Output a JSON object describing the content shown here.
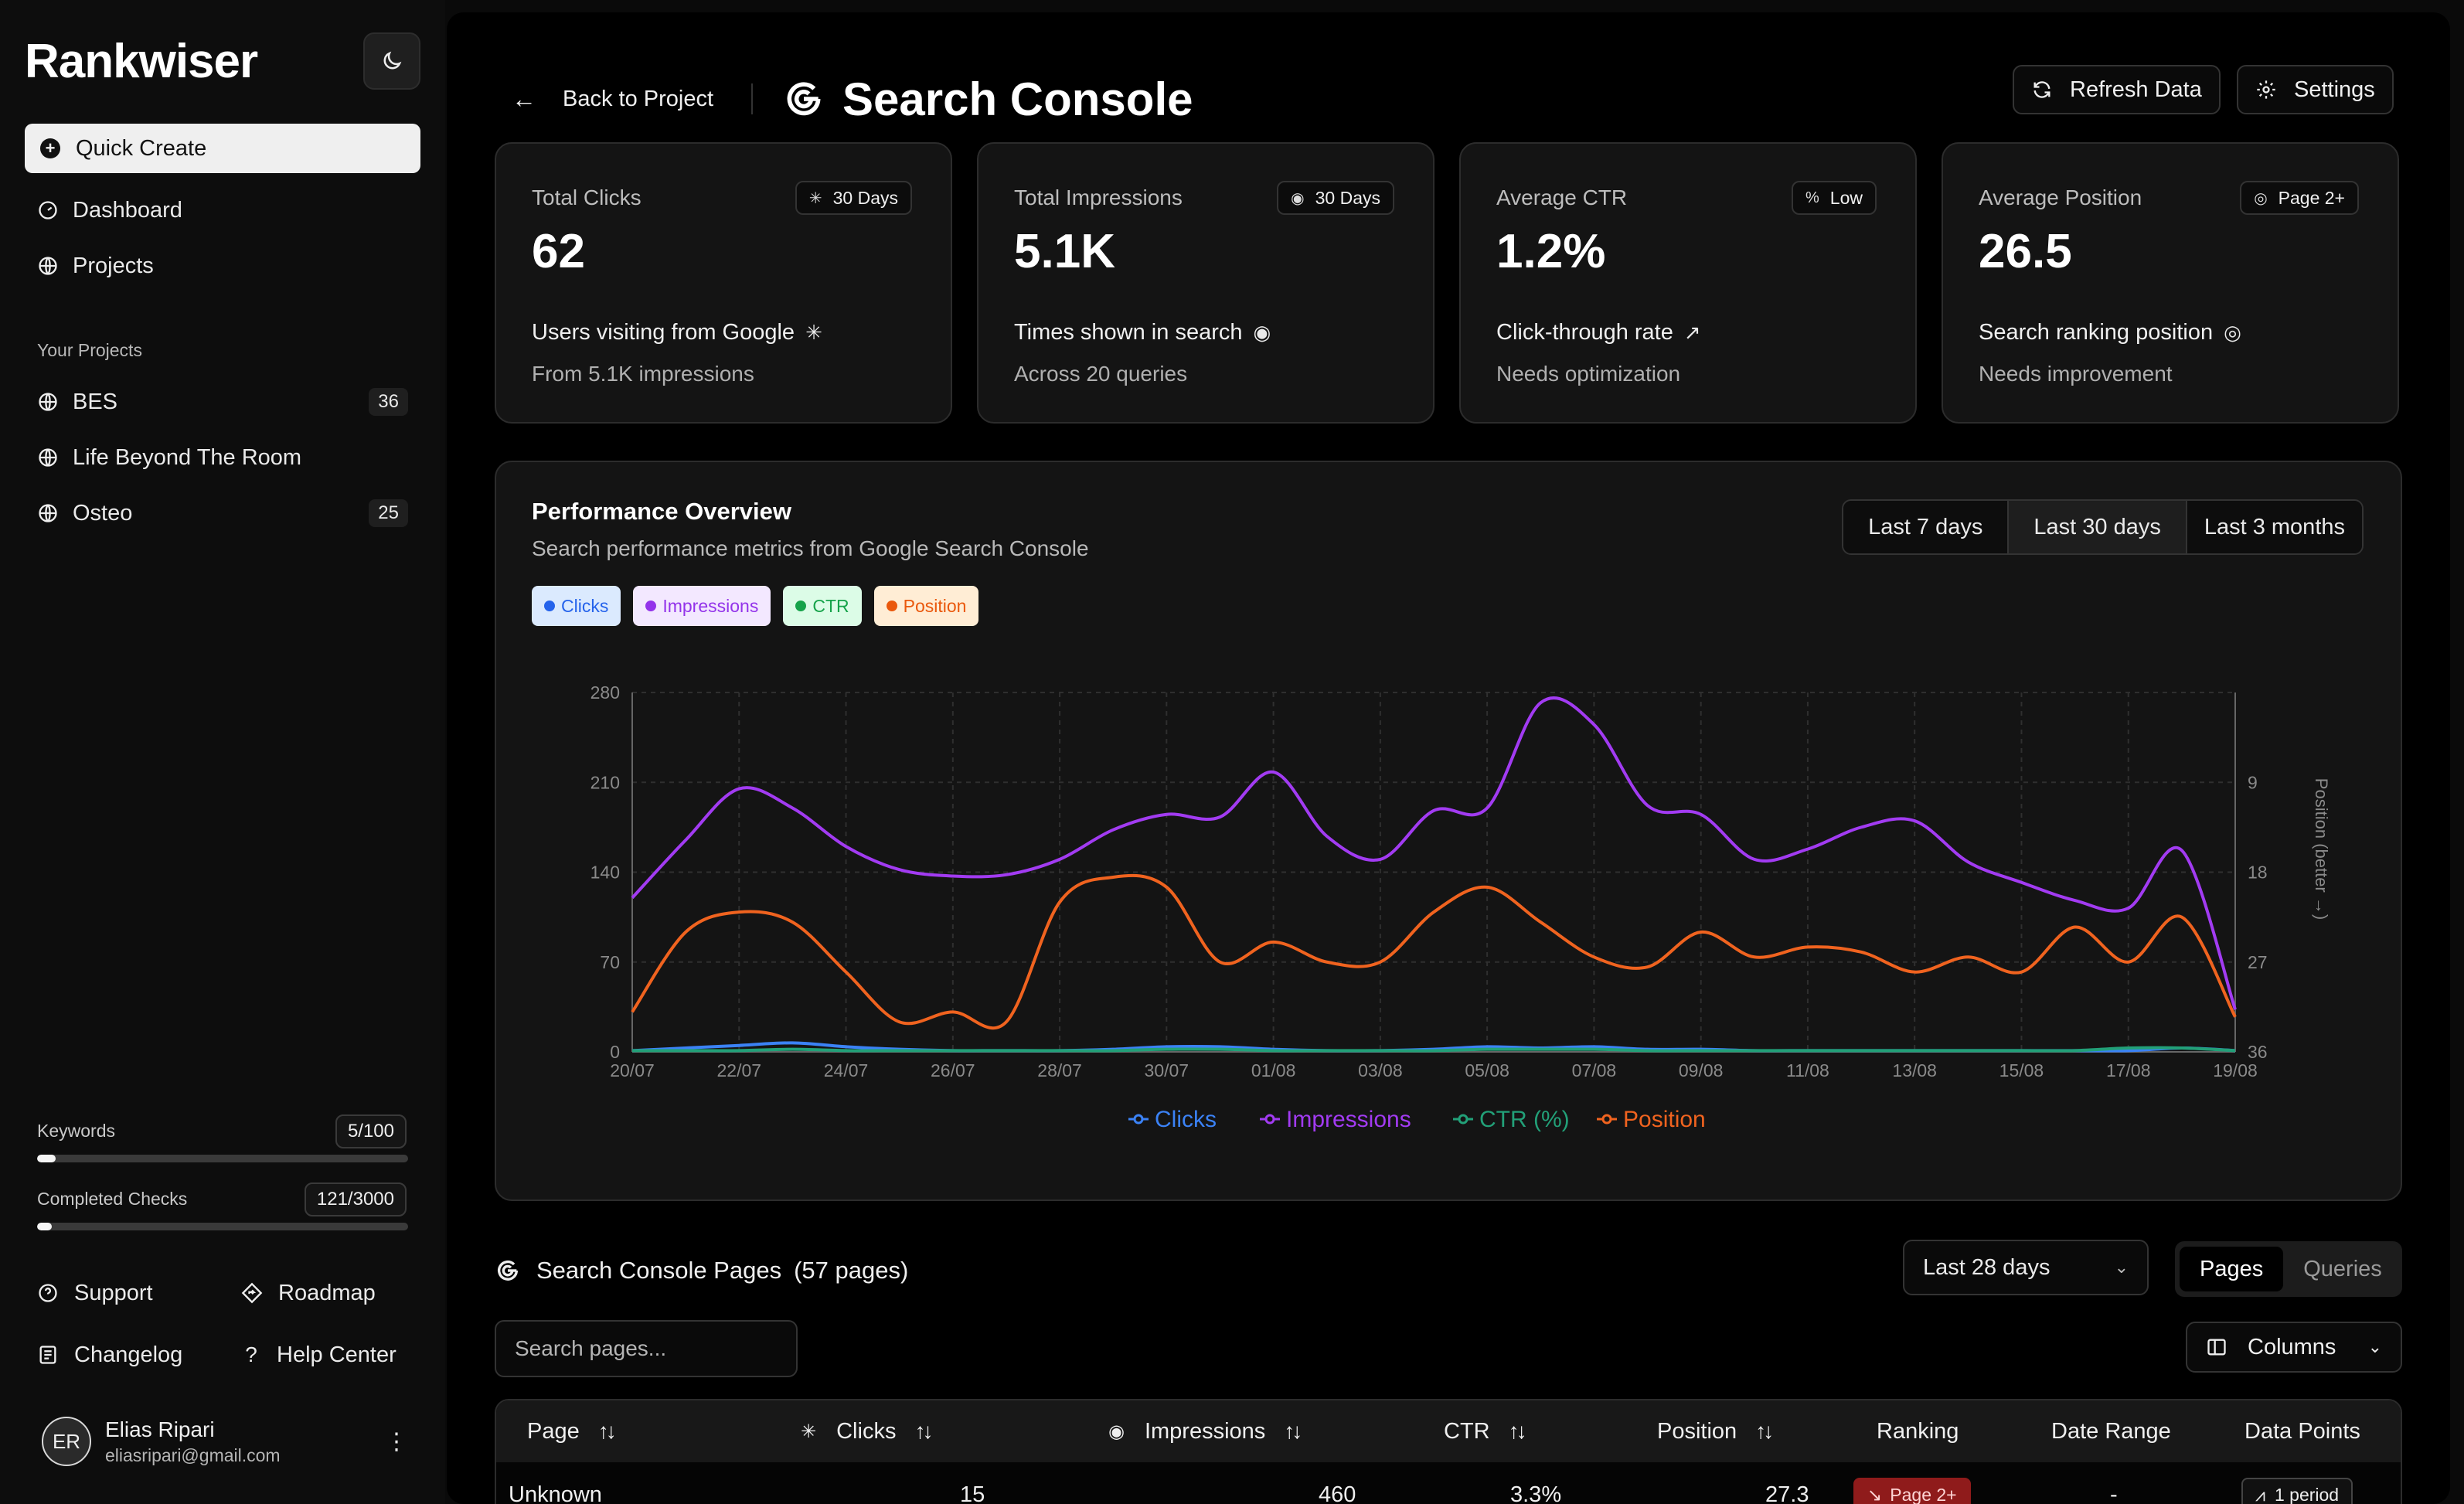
{
  "sidebar": {
    "logo": "Rankwiser",
    "quick_create": "Quick Create",
    "nav": [
      {
        "label": "Dashboard"
      },
      {
        "label": "Projects"
      }
    ],
    "section_label": "Your Projects",
    "projects": [
      {
        "name": "BES",
        "count": "36"
      },
      {
        "name": "Life Beyond The Room",
        "count": ""
      },
      {
        "name": "Osteo",
        "count": "25"
      }
    ],
    "usage": [
      {
        "label": "Keywords",
        "count": "5/100",
        "fraction": 0.05
      },
      {
        "label": "Completed Checks",
        "count": "121/3000",
        "fraction": 0.04
      }
    ],
    "footer_links": {
      "support": "Support",
      "roadmap": "Roadmap",
      "changelog": "Changelog",
      "help": "Help Center"
    },
    "user": {
      "initials": "ER",
      "name": "Elias Ripari",
      "email": "eliasripari@gmail.com"
    }
  },
  "header": {
    "back": "Back to Project",
    "title": "Search Console",
    "refresh": "Refresh Data",
    "settings": "Settings"
  },
  "stats": [
    {
      "label": "Total Clicks",
      "badge": "30 Days",
      "value": "62",
      "desc": "Users visiting from Google",
      "sub": "From 5.1K impressions"
    },
    {
      "label": "Total Impressions",
      "badge": "30 Days",
      "value": "5.1K",
      "desc": "Times shown in search",
      "sub": "Across 20 queries"
    },
    {
      "label": "Average CTR",
      "badge": "Low",
      "value": "1.2%",
      "desc": "Click-through rate",
      "sub": "Needs optimization"
    },
    {
      "label": "Average Position",
      "badge": "Page 2+",
      "value": "26.5",
      "desc": "Search ranking position",
      "sub": "Needs improvement"
    }
  ],
  "performance": {
    "title": "Performance Overview",
    "subtitle": "Search performance metrics from Google Search Console",
    "ranges": [
      "Last 7 days",
      "Last 30 days",
      "Last 3 months"
    ],
    "active_range": "Last 30 days",
    "chips": [
      {
        "label": "Clicks",
        "color": "#2563eb",
        "bg": "#dbeafe"
      },
      {
        "label": "Impressions",
        "color": "#9333ea",
        "bg": "#f3e8ff"
      },
      {
        "label": "CTR",
        "color": "#16a34a",
        "bg": "#dcfce7"
      },
      {
        "label": "Position",
        "color": "#ea580c",
        "bg": "#ffedd5"
      }
    ]
  },
  "chart_data": {
    "type": "line",
    "x": [
      "20/07",
      "21/07",
      "22/07",
      "23/07",
      "24/07",
      "25/07",
      "26/07",
      "27/07",
      "28/07",
      "29/07",
      "30/07",
      "31/07",
      "01/08",
      "02/08",
      "03/08",
      "04/08",
      "05/08",
      "06/08",
      "07/08",
      "08/08",
      "09/08",
      "10/08",
      "11/08",
      "12/08",
      "13/08",
      "14/08",
      "15/08",
      "16/08",
      "17/08",
      "18/08",
      "19/08"
    ],
    "x_tick_labels": [
      "20/07",
      "22/07",
      "24/07",
      "26/07",
      "28/07",
      "30/07",
      "01/08",
      "03/08",
      "05/08",
      "07/08",
      "09/08",
      "11/08",
      "13/08",
      "15/08",
      "17/08",
      "19/08"
    ],
    "ylim_left": [
      0,
      280
    ],
    "yticks_left": [
      0,
      70,
      140,
      210,
      280
    ],
    "ylim_right": [
      36,
      0
    ],
    "yticks_right": [
      9,
      18,
      27,
      36
    ],
    "ylabel_right": "Position (better →)",
    "legend_position": "bottom",
    "series": [
      {
        "name": "Clicks",
        "axis": "left",
        "color": "#3b82f6",
        "values": [
          1,
          3,
          5,
          7,
          4,
          2,
          1,
          1,
          1,
          2,
          4,
          4,
          2,
          1,
          1,
          2,
          4,
          3,
          4,
          2,
          2,
          1,
          1,
          1,
          1,
          1,
          1,
          1,
          1,
          3,
          1
        ]
      },
      {
        "name": "Impressions",
        "axis": "left",
        "color": "#a23bf2",
        "values": [
          120,
          165,
          205,
          190,
          160,
          142,
          137,
          138,
          150,
          173,
          185,
          183,
          218,
          168,
          150,
          188,
          190,
          272,
          255,
          192,
          185,
          150,
          158,
          175,
          180,
          148,
          132,
          118,
          112,
          157,
          33
        ]
      },
      {
        "name": "CTR (%)",
        "axis": "left",
        "color": "#22a078",
        "values": [
          1,
          1,
          1,
          2,
          1,
          1,
          1,
          1,
          1,
          1,
          2,
          2,
          1,
          1,
          1,
          1,
          2,
          2,
          2,
          1,
          1,
          1,
          1,
          1,
          1,
          1,
          1,
          1,
          3,
          3,
          1
        ]
      },
      {
        "name": "Position",
        "axis": "right",
        "color": "#f0631f",
        "values": [
          32,
          24,
          22,
          23,
          28,
          33,
          32,
          33,
          21,
          18.5,
          19.5,
          27,
          25,
          27,
          27,
          22,
          19.5,
          23,
          26.5,
          27.5,
          24,
          26.5,
          25.5,
          26,
          28,
          26.5,
          28,
          23.5,
          27,
          22.5,
          32.5
        ]
      }
    ]
  },
  "pages_section": {
    "title": "Search Console Pages",
    "count": "(57 pages)",
    "date_select": "Last 28 days",
    "tabs": [
      "Pages",
      "Queries"
    ],
    "active_tab": "Pages",
    "search_placeholder": "Search pages...",
    "columns_btn": "Columns",
    "headers": {
      "page": "Page",
      "clicks": "Clicks",
      "impressions": "Impressions",
      "ctr": "CTR",
      "position": "Position",
      "ranking": "Ranking",
      "date_range": "Date Range",
      "data_points": "Data Points"
    },
    "rows": [
      {
        "page": "Unknown",
        "clicks": "15",
        "impressions": "460",
        "ctr": "3.3%",
        "position": "27.3",
        "ranking": "Page 2+",
        "date_range": "-",
        "data_points": "1 period"
      }
    ]
  }
}
